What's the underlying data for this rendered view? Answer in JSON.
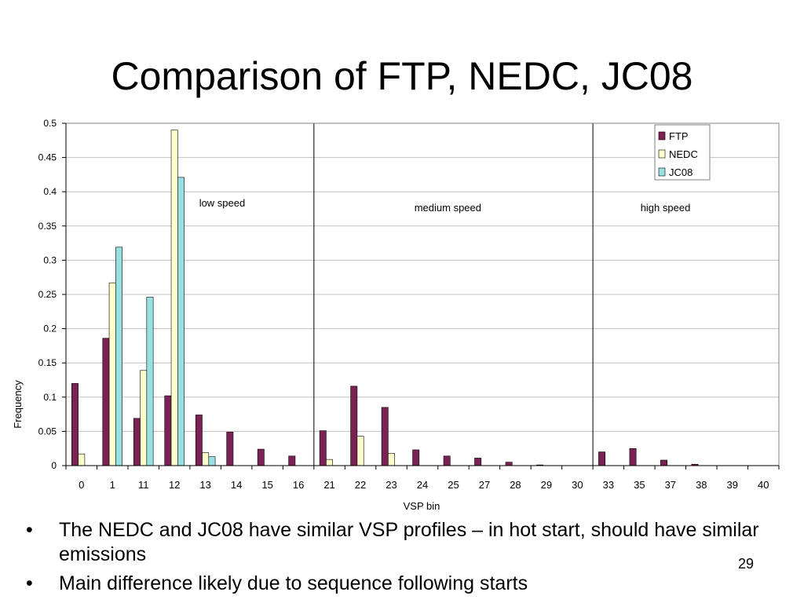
{
  "slide": {
    "title": "Comparison of FTP, NEDC, JC08",
    "bullets": [
      "The NEDC and JC08 have similar VSP profiles – in hot start, should have similar emissions",
      "Main difference likely due to sequence following starts"
    ],
    "page_number": "29"
  },
  "chart_data": {
    "type": "bar",
    "title": "",
    "xlabel": "VSP bin",
    "ylabel": "Frequency",
    "ylim": [
      0,
      0.5
    ],
    "yticks": [
      "0",
      "0.05",
      "0.1",
      "0.15",
      "0.2",
      "0.25",
      "0.3",
      "0.35",
      "0.4",
      "0.45",
      "0.5"
    ],
    "grid": true,
    "legend_position": "top-right",
    "categories": [
      "0",
      "1",
      "11",
      "12",
      "13",
      "14",
      "15",
      "16",
      "21",
      "22",
      "23",
      "24",
      "25",
      "27",
      "28",
      "29",
      "30",
      "33",
      "35",
      "37",
      "38",
      "39",
      "40"
    ],
    "series": [
      {
        "name": "FTP",
        "color": "#7b2254",
        "values": [
          0.12,
          0.186,
          0.069,
          0.102,
          0.074,
          0.049,
          0.024,
          0.014,
          0.051,
          0.116,
          0.085,
          0.023,
          0.014,
          0.011,
          0.005,
          0.001,
          0,
          0.02,
          0.025,
          0.008,
          0.002,
          0,
          0
        ]
      },
      {
        "name": "NEDC",
        "color": "#ffffcc",
        "values": [
          0.017,
          0.267,
          0.139,
          0.49,
          0.019,
          0,
          0,
          0,
          0.009,
          0.043,
          0.018,
          0,
          0,
          0,
          0,
          0,
          0,
          0,
          0,
          0,
          0,
          0,
          0
        ]
      },
      {
        "name": "JC08",
        "color": "#99e0e3",
        "values": [
          0,
          0.319,
          0.246,
          0.421,
          0.013,
          0,
          0,
          0,
          0,
          0,
          0,
          0,
          0,
          0,
          0,
          0,
          0,
          0,
          0,
          0,
          0,
          0,
          0
        ]
      }
    ],
    "separators_after": [
      "16",
      "30"
    ],
    "annotations": [
      "low speed",
      "medium speed",
      "high speed"
    ]
  }
}
